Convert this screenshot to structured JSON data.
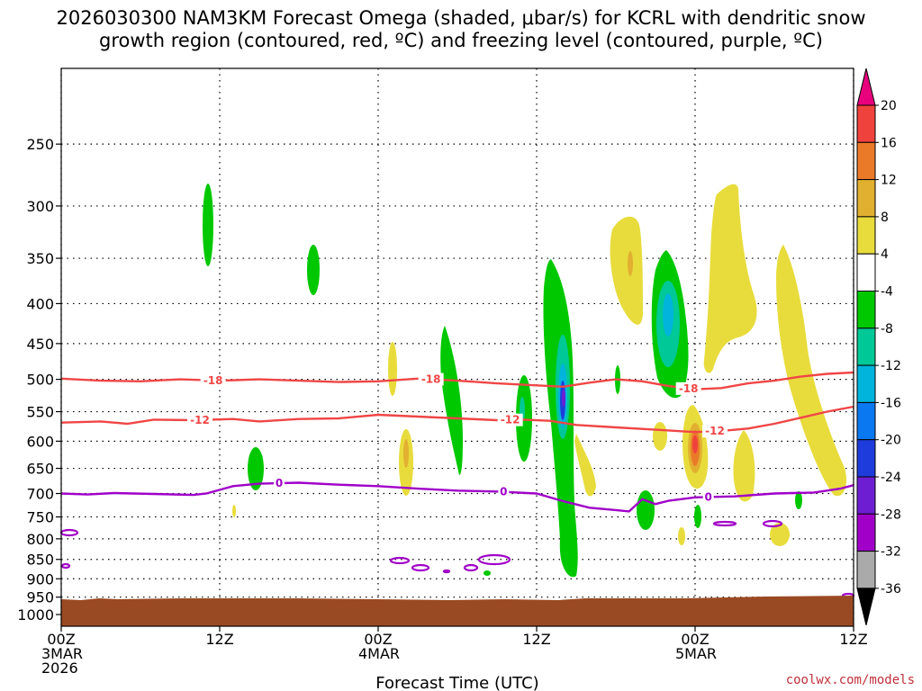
{
  "chart_data": {
    "type": "heatmap",
    "title_line1": "2026030300 NAM3KM Forecast Omega (shaded, μbar/s) for KCRL with dendritic snow",
    "title_line2": "growth region (contoured, red, ºC) and freezing level (contoured, purple, ºC)",
    "xlabel": "Forecast Time (UTC)",
    "credit": "coolwx.com/models",
    "y_axis": {
      "levels_hPa": [
        250,
        300,
        350,
        400,
        450,
        500,
        550,
        600,
        650,
        700,
        750,
        800,
        850,
        900,
        950,
        1000
      ],
      "top_hPa": 200,
      "bottom_hPa": 1035
    },
    "x_axis": {
      "range_hours": [
        0,
        60
      ],
      "ticks": [
        {
          "hour": 0,
          "lines": [
            "00Z",
            "3MAR",
            "2026"
          ]
        },
        {
          "hour": 12,
          "lines": [
            "12Z"
          ]
        },
        {
          "hour": 24,
          "lines": [
            "00Z",
            "4MAR"
          ]
        },
        {
          "hour": 36,
          "lines": [
            "12Z"
          ]
        },
        {
          "hour": 48,
          "lines": [
            "00Z",
            "5MAR"
          ]
        },
        {
          "hour": 60,
          "lines": [
            "12Z"
          ]
        }
      ]
    },
    "colorbar": {
      "labels": [
        "20",
        "16",
        "12",
        "8",
        "4",
        "-4",
        "-8",
        "-12",
        "-16",
        "-20",
        "-24",
        "-28",
        "-32",
        "-36"
      ],
      "bins": [
        {
          "color": "#e8007d"
        },
        {
          "color": "#f0423c"
        },
        {
          "color": "#ea7a28"
        },
        {
          "color": "#e2b030"
        },
        {
          "color": "#e8dc3c"
        },
        {
          "color": "#ffffff"
        },
        {
          "color": "#00c800"
        },
        {
          "color": "#00c896"
        },
        {
          "color": "#00b4dc"
        },
        {
          "color": "#0a78f0"
        },
        {
          "color": "#1e3cdc"
        },
        {
          "color": "#6e1ed2"
        },
        {
          "color": "#a000c8"
        },
        {
          "color": "#aaaaaa"
        },
        {
          "color": "#000000"
        }
      ]
    },
    "contours": [
      {
        "name": "snow-growth-minus18",
        "label": "-18",
        "color": "#f04646",
        "label_hours": [
          11.5,
          28,
          47.5
        ],
        "points": [
          [
            0,
            499
          ],
          [
            3,
            502
          ],
          [
            6,
            503
          ],
          [
            9,
            500
          ],
          [
            12,
            502
          ],
          [
            15,
            500
          ],
          [
            18,
            502
          ],
          [
            21,
            504
          ],
          [
            24,
            503
          ],
          [
            27,
            499
          ],
          [
            30,
            502
          ],
          [
            33,
            506
          ],
          [
            36,
            509
          ],
          [
            38,
            511
          ],
          [
            40,
            505
          ],
          [
            42,
            500
          ],
          [
            44,
            503
          ],
          [
            46,
            510
          ],
          [
            48,
            515
          ],
          [
            50,
            513
          ],
          [
            52,
            506
          ],
          [
            54,
            502
          ],
          [
            56,
            496
          ],
          [
            58,
            492
          ],
          [
            60,
            490
          ]
        ]
      },
      {
        "name": "snow-growth-minus12",
        "label": "-12",
        "color": "#f04646",
        "label_hours": [
          10.5,
          34,
          49.5
        ],
        "points": [
          [
            0,
            568
          ],
          [
            3,
            566
          ],
          [
            5,
            570
          ],
          [
            7,
            563
          ],
          [
            10,
            564
          ],
          [
            13,
            562
          ],
          [
            15,
            566
          ],
          [
            18,
            562
          ],
          [
            21,
            561
          ],
          [
            24,
            555
          ],
          [
            27,
            558
          ],
          [
            30,
            561
          ],
          [
            33,
            564
          ],
          [
            35,
            563
          ],
          [
            37,
            565
          ],
          [
            39,
            572
          ],
          [
            42,
            576
          ],
          [
            45,
            580
          ],
          [
            48,
            584
          ],
          [
            50,
            582
          ],
          [
            52,
            578
          ],
          [
            54,
            570
          ],
          [
            56,
            560
          ],
          [
            58,
            550
          ],
          [
            60,
            542
          ]
        ]
      },
      {
        "name": "freezing-level-0",
        "label": "0",
        "color": "#a000c8",
        "label_hours": [
          16.5,
          33.5,
          49
        ],
        "points": [
          [
            0,
            700
          ],
          [
            2,
            702
          ],
          [
            4,
            699
          ],
          [
            7,
            701
          ],
          [
            10,
            703
          ],
          [
            11,
            700
          ],
          [
            13,
            685
          ],
          [
            15,
            680
          ],
          [
            18,
            678
          ],
          [
            21,
            682
          ],
          [
            24,
            685
          ],
          [
            27,
            690
          ],
          [
            30,
            694
          ],
          [
            33,
            696
          ],
          [
            36,
            700
          ],
          [
            38,
            716
          ],
          [
            40,
            730
          ],
          [
            42,
            735
          ],
          [
            43,
            738
          ],
          [
            44,
            712
          ],
          [
            45,
            722
          ],
          [
            46,
            715
          ],
          [
            48,
            708
          ],
          [
            51,
            706
          ],
          [
            54,
            700
          ],
          [
            57,
            698
          ],
          [
            59,
            690
          ],
          [
            60,
            683
          ]
        ]
      }
    ]
  }
}
